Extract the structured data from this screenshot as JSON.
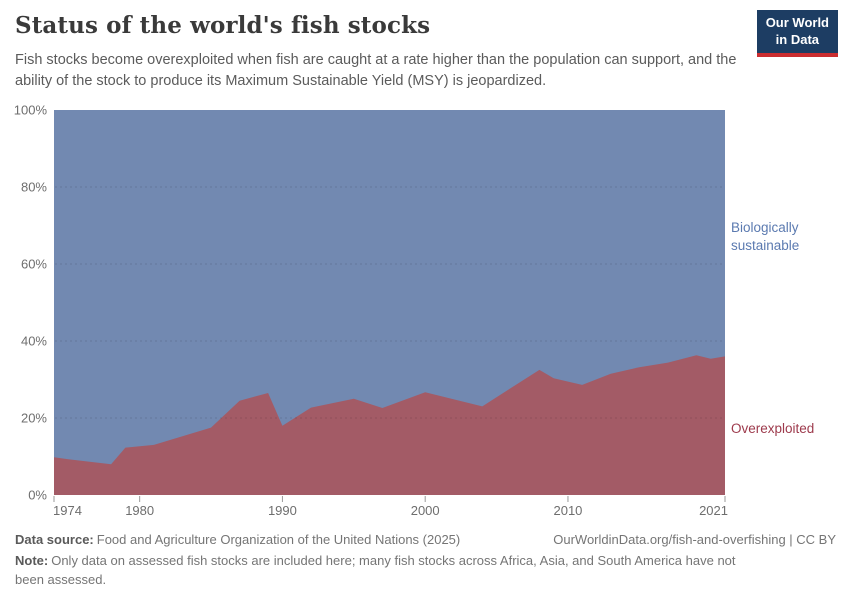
{
  "header": {
    "title": "Status of the world's fish stocks",
    "subtitle": "Fish stocks become overexploited when fish are caught at a rate higher than the population can support, and the ability of the stock to produce its Maximum Sustainable Yield (MSY) is jeopardized.",
    "logo": {
      "line1": "Our World",
      "line2": "in Data",
      "bg_color": "#1d3d63",
      "accent_color": "#cb2d30",
      "text_color": "#ffffff"
    }
  },
  "chart_data": {
    "type": "area",
    "stacked": true,
    "unit": "%",
    "title": "Status of the world's fish stocks",
    "xlabel": "",
    "ylabel": "",
    "xlim": [
      1974,
      2021
    ],
    "ylim": [
      0,
      100
    ],
    "grid": "dashed",
    "legend_position": "right-edge-labels",
    "x": [
      1974,
      1975,
      1978,
      1979,
      1981,
      1985,
      1987,
      1989,
      1990,
      1992,
      1995,
      1997,
      2000,
      2004,
      2006,
      2008,
      2009,
      2011,
      2013,
      2015,
      2017,
      2019,
      2020,
      2021
    ],
    "series": [
      {
        "name": "Overexploited",
        "color": "#a35b66",
        "label_color": "#9d3a4c",
        "values": [
          9.8,
          9.3,
          8.0,
          12.3,
          13.0,
          17.5,
          24.5,
          26.5,
          18.0,
          22.7,
          25.0,
          22.6,
          26.7,
          23.0,
          27.8,
          32.5,
          30.3,
          28.6,
          31.5,
          33.2,
          34.4,
          36.3,
          35.4,
          36.0
        ]
      },
      {
        "name": "Biologically sustainable",
        "color": "#7289b1",
        "label_color": "#5b7ab0",
        "values": [
          90.2,
          90.7,
          92.0,
          87.7,
          87.0,
          82.5,
          75.5,
          73.5,
          82.0,
          77.3,
          75.0,
          77.4,
          73.3,
          77.0,
          72.2,
          67.5,
          69.7,
          71.4,
          68.5,
          66.8,
          65.6,
          63.7,
          64.6,
          64.0
        ]
      }
    ],
    "yticks": [
      0,
      20,
      40,
      60,
      80,
      100
    ],
    "ytick_labels": [
      "0%",
      "20%",
      "40%",
      "60%",
      "80%",
      "100%"
    ],
    "xticks": [
      1974,
      1980,
      1990,
      2000,
      2010,
      2021
    ],
    "xtick_labels": [
      "1974",
      "1980",
      "1990",
      "2000",
      "2010",
      "2021"
    ],
    "axis_text_color": "#6e6e6e",
    "tick_color": "#9a9a9a"
  },
  "footer": {
    "source_label": "Data source:",
    "source_text": "Food and Agriculture Organization of the United Nations (2025)",
    "link_text": "OurWorldinData.org/fish-and-overfishing | CC BY",
    "note_label": "Note:",
    "note_text": "Only data on assessed fish stocks are included here; many fish stocks across Africa, Asia, and South America have not been assessed."
  }
}
